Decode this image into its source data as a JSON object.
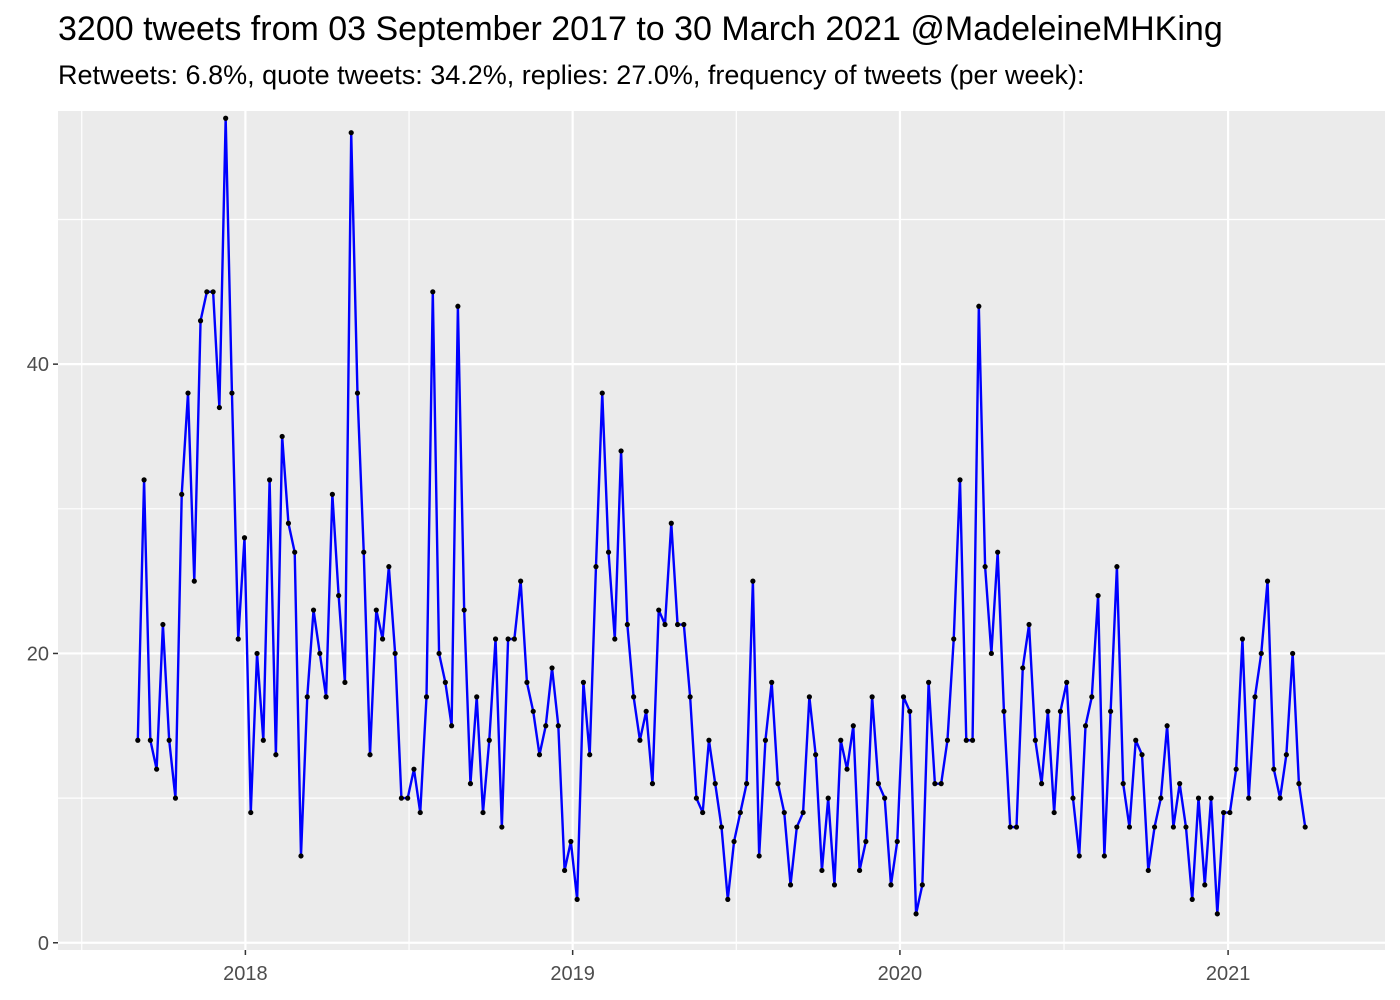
{
  "chart_data": {
    "type": "line",
    "title": "3200 tweets from 03 September 2017 to 30 March 2021 @MadeleineMHKing",
    "subtitle": "Retweets: 6.8%, quote tweets: 34.2%, replies: 27.0%, frequency of tweets (per week):",
    "xlabel": "",
    "ylabel": "",
    "x_range": [
      "2017-06-06",
      "2021-06-25"
    ],
    "ylim": [
      -0.5,
      57.5
    ],
    "y_ticks": [
      0,
      20,
      40
    ],
    "x_ticks": [
      {
        "date": "2018-01-01",
        "label": "2018"
      },
      {
        "date": "2019-01-01",
        "label": "2019"
      },
      {
        "date": "2020-01-01",
        "label": "2020"
      },
      {
        "date": "2021-01-01",
        "label": "2021"
      }
    ],
    "start_date": "2017-09-03",
    "interval_days": 7,
    "grid": true,
    "colors": {
      "line": "#0000ff",
      "point": "#000000",
      "panel": "#ebebeb",
      "grid": "#ffffff",
      "axis_text": "#4d4d4d"
    },
    "values": [
      14,
      32,
      14,
      12,
      22,
      14,
      10,
      31,
      38,
      25,
      43,
      45,
      45,
      37,
      57,
      38,
      21,
      28,
      9,
      20,
      14,
      32,
      13,
      35,
      29,
      27,
      6,
      17,
      23,
      20,
      17,
      31,
      24,
      18,
      56,
      38,
      27,
      13,
      23,
      21,
      26,
      20,
      10,
      10,
      12,
      9,
      17,
      45,
      20,
      18,
      15,
      44,
      23,
      11,
      17,
      9,
      14,
      21,
      8,
      21,
      21,
      25,
      18,
      16,
      13,
      15,
      19,
      15,
      5,
      7,
      3,
      18,
      13,
      26,
      38,
      27,
      21,
      34,
      22,
      17,
      14,
      16,
      11,
      23,
      22,
      29,
      22,
      22,
      17,
      10,
      9,
      14,
      11,
      8,
      3,
      7,
      9,
      11,
      25,
      6,
      14,
      18,
      11,
      9,
      4,
      8,
      9,
      17,
      13,
      5,
      10,
      4,
      14,
      12,
      15,
      5,
      7,
      17,
      11,
      10,
      4,
      7,
      17,
      16,
      2,
      4,
      18,
      11,
      11,
      14,
      21,
      32,
      14,
      14,
      44,
      26,
      20,
      27,
      16,
      8,
      8,
      19,
      22,
      14,
      11,
      16,
      9,
      16,
      18,
      10,
      6,
      15,
      17,
      24,
      6,
      16,
      26,
      11,
      8,
      14,
      13,
      5,
      8,
      10,
      15,
      8,
      11,
      8,
      3,
      10,
      4,
      10,
      2,
      9,
      9,
      12,
      21,
      10,
      17,
      20,
      25,
      12,
      10,
      13,
      20,
      11,
      8
    ]
  }
}
